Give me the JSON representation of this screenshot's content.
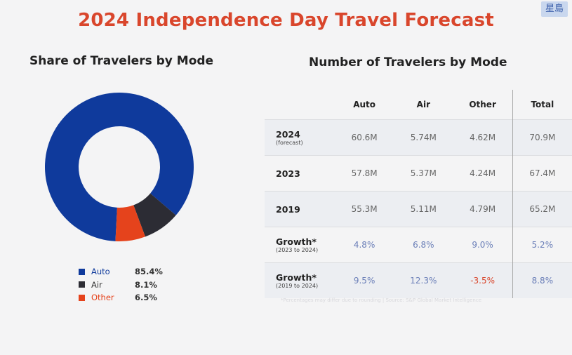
{
  "title": "2024 Independence Day Travel Forecast",
  "watermark": "星島",
  "left_title": "Share of Travelers by Mode",
  "right_title": "Number of Travelers by Mode",
  "footnote": "*Percentages may differ due to rounding | Source: S&P Global Market Intelligence",
  "chart_data": [
    {
      "type": "pie",
      "title": "Share of Travelers by Mode",
      "donut": true,
      "labels": [
        "Auto",
        "Air",
        "Other"
      ],
      "values": [
        85.4,
        8.1,
        6.5
      ],
      "value_labels": [
        "85.4%",
        "8.1%",
        "6.5%"
      ],
      "colors": [
        "#0f3a9c",
        "#2c2c34",
        "#e5431c"
      ],
      "legend": "bottom"
    },
    {
      "type": "table",
      "title": "Number of Travelers by Mode",
      "columns": [
        "",
        "Auto",
        "Air",
        "Other",
        "Total"
      ],
      "rows": [
        {
          "label": "2024",
          "sub": "(forecast)",
          "values": [
            "60.6M",
            "5.74M",
            "4.62M",
            "70.9M"
          ]
        },
        {
          "label": "2023",
          "sub": "",
          "values": [
            "57.8M",
            "5.37M",
            "4.24M",
            "67.4M"
          ]
        },
        {
          "label": "2019",
          "sub": "",
          "values": [
            "55.3M",
            "5.11M",
            "4.79M",
            "65.2M"
          ]
        },
        {
          "label": "Growth*",
          "sub": "(2023 to 2024)",
          "values": [
            "4.8%",
            "6.8%",
            "9.0%",
            "5.2%"
          ]
        },
        {
          "label": "Growth*",
          "sub": "(2019 to 2024)",
          "values": [
            "9.5%",
            "12.3%",
            "-3.5%",
            "8.8%"
          ]
        }
      ]
    }
  ]
}
